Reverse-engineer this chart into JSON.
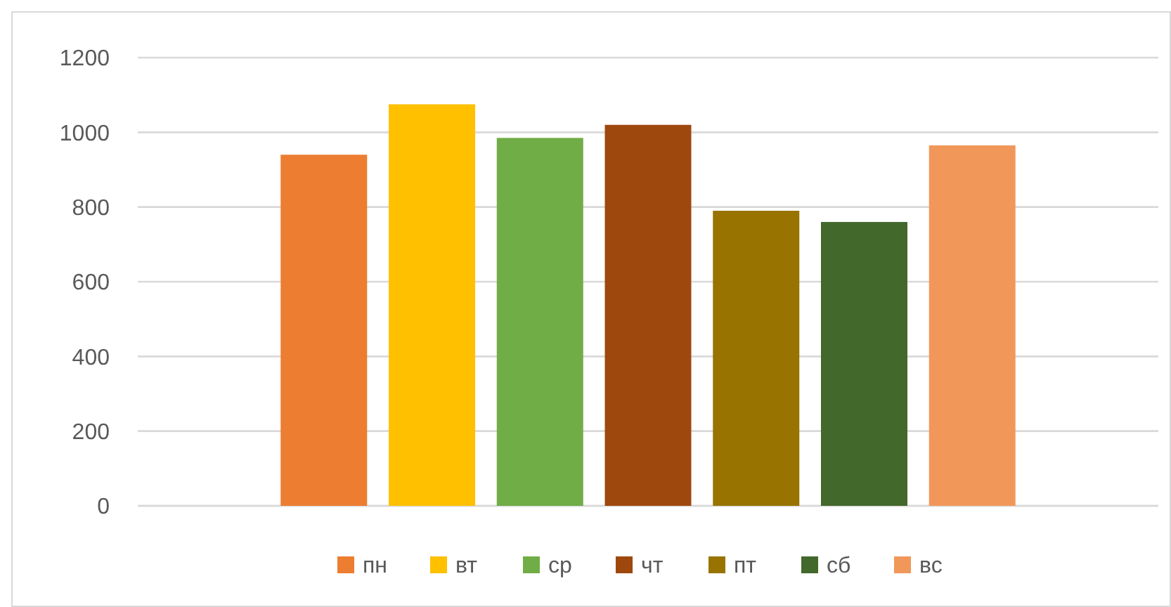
{
  "chart_data": {
    "type": "bar",
    "categories": [
      null
    ],
    "series": [
      {
        "name": "пн",
        "color": "#ed7d31",
        "values": [
          940
        ]
      },
      {
        "name": "вт",
        "color": "#ffc000",
        "values": [
          1075
        ]
      },
      {
        "name": "ср",
        "color": "#70ad47",
        "values": [
          985
        ]
      },
      {
        "name": "чт",
        "color": "#9e480e",
        "values": [
          1020
        ]
      },
      {
        "name": "пт",
        "color": "#997300",
        "values": [
          790
        ]
      },
      {
        "name": "сб",
        "color": "#43682b",
        "values": [
          760
        ]
      },
      {
        "name": "вс",
        "color": "#f1975a",
        "values": [
          965
        ]
      }
    ],
    "ylim": [
      0,
      1200
    ],
    "yticks": [
      0,
      200,
      400,
      600,
      800,
      1000,
      1200
    ],
    "grid": "y",
    "legend": "bottom"
  }
}
